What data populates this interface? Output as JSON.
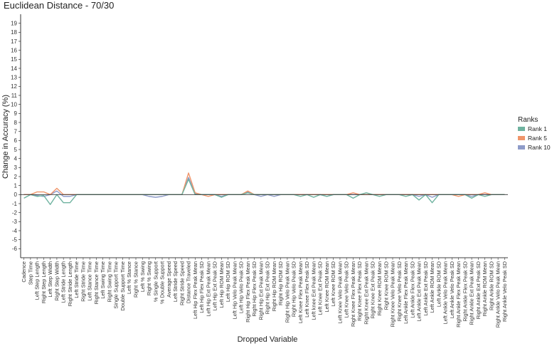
{
  "chart_data": {
    "type": "line",
    "title": "Euclidean Distance - 70/30",
    "xlabel": "Dropped Variable",
    "ylabel": "Change in Accuracy (%)",
    "ylim": [
      -7,
      20
    ],
    "yticks": [
      -6,
      -5,
      -4,
      -3,
      -2,
      -1,
      0,
      1,
      2,
      3,
      4,
      5,
      6,
      7,
      8,
      9,
      10,
      11,
      12,
      13,
      14,
      15,
      16,
      17,
      18,
      19
    ],
    "grid": false,
    "legend_title": "Ranks",
    "legend_position": "right",
    "categories": [
      "Cadence",
      "Step Time",
      "Left Step Length",
      "Right Step Length",
      "Left Step Width",
      "Right Step Width",
      "Left Stride Length",
      "Right Stride Length",
      "Left Stride Time",
      "Right Stride Time",
      "Left Stance Time",
      "Right Stance Time",
      "Left Swing Time",
      "Right Swing Time",
      "Single Support Time",
      "Double Support Time",
      "Left % Stance",
      "Right % Stance",
      "Left % Swing",
      "Right % Swing",
      "% Single Support",
      "% Double Support",
      "Average Speed",
      "Left Stride Speed",
      "Right Stride Speed",
      "Distance Traveled",
      "Left Hip Flex Peak Mean",
      "Left Hip Flex Peak SD",
      "Left Hip Ext Peak Mean",
      "Left Hip Ext Peak SD",
      "Left Hip ROM Mean",
      "Left Hip ROM SD",
      "Left Hip Velo Peak Mean",
      "Left Hip Velo Peak SD",
      "Right Hip Flex Peak Mean",
      "Right Hip Flex Peak SD",
      "Right Hip Ext Peak Mean",
      "Right Hip Ext Peak SD",
      "Right Hip ROM Mean",
      "Right Hip ROM SD",
      "Right Hip Velo Peak Mean",
      "Right Hip Velo Peak SD",
      "Left Knee Flex Peak Mean",
      "Left Knee Flex Peak SD",
      "Left knee Ext Peak Mean",
      "Left Knee Ext Peak SD",
      "Left Knee ROM Mean",
      "Left Knee ROM SD",
      "Left Knee Velo Peak Mean",
      "Left Knee Velo Peak SD",
      "Right Knee Flex Peak Mean",
      "Right Knee Flex Peak SD",
      "Right Knee Ext Peak Mean",
      "Right Knee Ext Peak SD",
      "Right Knee ROM Mean",
      "Right Knee ROM SD",
      "Right Knee Velo Peak Mean",
      "Right Knee Velo Peak SD",
      "Left Ankle Flex Peak Mean",
      "Left Ankle Flex Peak SD",
      "Left Ankle Ext Peak Mean",
      "Left Ankle Ext Peak SD",
      "Left Ankle ROM Mean",
      "Left Ankle ROM SD",
      "Left Ankle Velo Peak Mean",
      "Left Ankle Velo Peak SD",
      "Right Ankle Flex Peak Mean",
      "Right Ankle Flex Peak SD",
      "Right Ankle Ext Peak Mean",
      "Right Ankle Ext Peak SD",
      "Right Ankle ROM Mean",
      "Right Ankle ROM SD",
      "Right Ankle Velo Peak Mean",
      "Right Ankle Velo Peak SD"
    ],
    "series": [
      {
        "name": "Rank 1",
        "color": "#6fb3a0",
        "values": [
          -0.4,
          0,
          -0.2,
          -0.1,
          -1.1,
          0,
          -0.9,
          -0.9,
          0,
          0,
          0,
          0,
          0,
          0,
          0,
          0,
          0,
          0,
          0,
          0,
          0,
          0,
          0,
          0,
          0,
          1.7,
          0,
          0,
          0,
          0,
          -0.3,
          0,
          0,
          0,
          0.2,
          0,
          0,
          0,
          0,
          0,
          0,
          0,
          -0.2,
          0,
          -0.3,
          0,
          -0.2,
          0,
          0,
          0,
          -0.4,
          0,
          0.2,
          0,
          -0.2,
          0,
          0,
          0,
          -0.2,
          0,
          -0.6,
          0,
          -0.9,
          0,
          0,
          0,
          0,
          0,
          -0.4,
          0,
          -0.2,
          0,
          0,
          0
        ]
      },
      {
        "name": "Rank 5",
        "color": "#f0956a",
        "values": [
          0,
          0,
          0.3,
          0.3,
          0,
          0.7,
          0,
          0,
          0,
          0,
          0,
          0,
          0,
          0,
          0,
          0,
          0,
          0,
          0,
          0,
          0,
          0,
          0,
          0,
          0,
          2.4,
          0.2,
          0,
          -0.2,
          0,
          0,
          0,
          0,
          0,
          0.4,
          0,
          0,
          0,
          0,
          0,
          0,
          0,
          0,
          0,
          0,
          0,
          0,
          0,
          0,
          0,
          0.2,
          0,
          0,
          0,
          0,
          0,
          0,
          0,
          0,
          0,
          0,
          0,
          0,
          0,
          0,
          0,
          -0.2,
          0,
          0,
          0,
          0.2,
          0,
          0,
          0
        ]
      },
      {
        "name": "Rank 10",
        "color": "#8e9bc9",
        "values": [
          0,
          0,
          -0.1,
          -0.2,
          0,
          0.4,
          -0.2,
          -0.2,
          0,
          0,
          0,
          0,
          0,
          0,
          0,
          0,
          0,
          0,
          0,
          -0.2,
          -0.3,
          -0.2,
          0,
          0,
          0,
          1.9,
          0.1,
          0,
          0,
          0,
          -0.2,
          0,
          0,
          0,
          0.3,
          0,
          -0.2,
          0,
          -0.2,
          0,
          0,
          0,
          0,
          0,
          0,
          0,
          -0.2,
          0,
          0,
          0,
          0,
          0,
          0,
          0,
          0,
          0,
          0,
          0,
          0,
          0,
          -0.2,
          0,
          -0.3,
          0,
          0,
          0,
          0,
          0,
          -0.2,
          0,
          0,
          0,
          0,
          0
        ]
      }
    ]
  }
}
